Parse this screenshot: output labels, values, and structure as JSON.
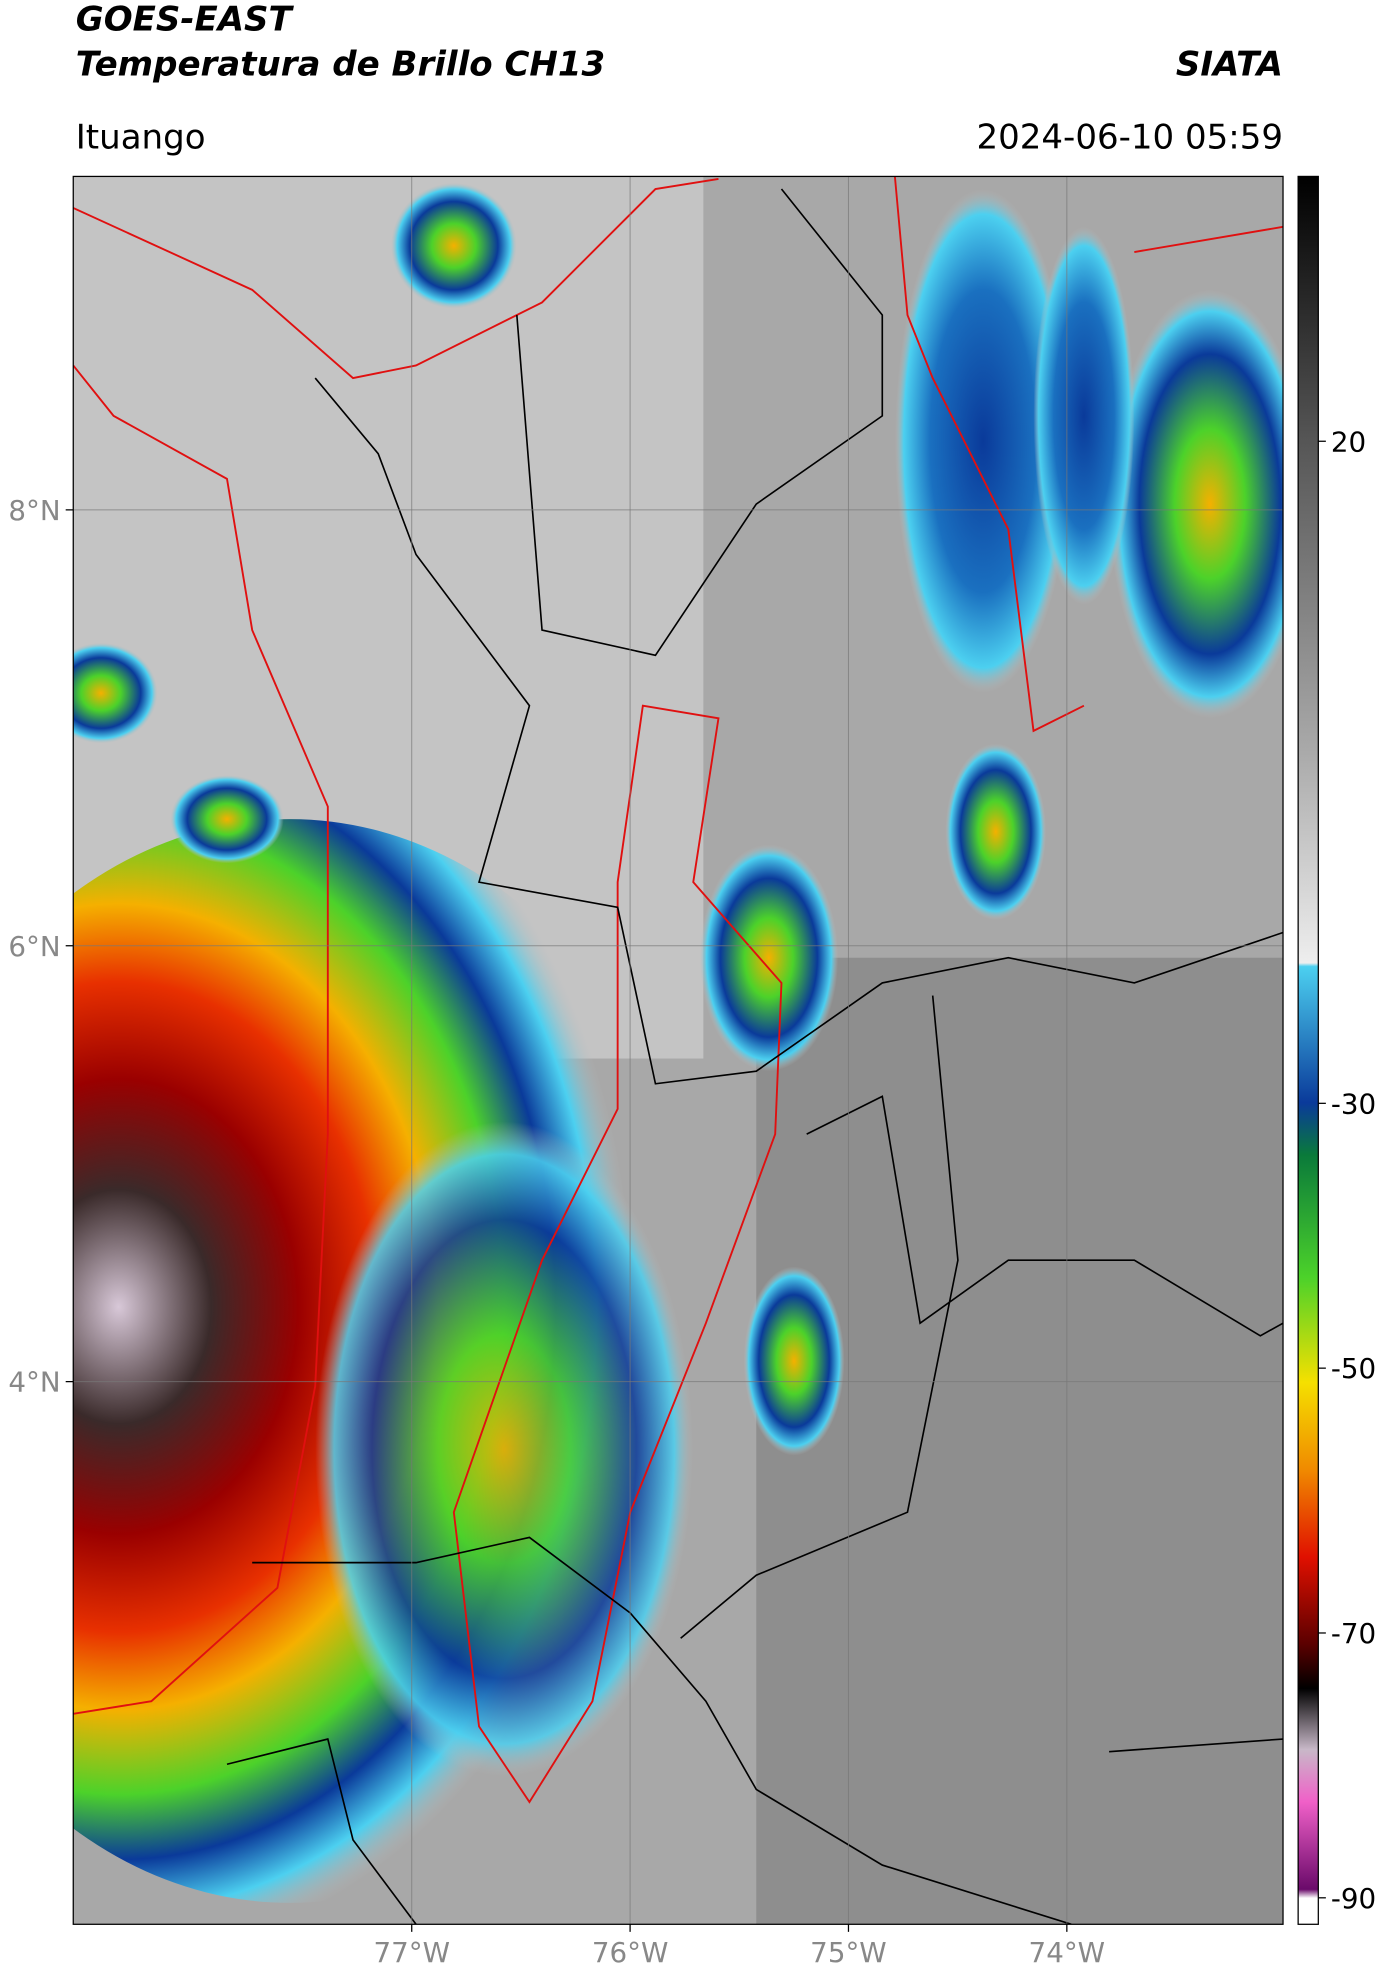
{
  "header": {
    "title_line1": "GOES-EAST",
    "title_line2": "Temperatura de Brillo CH13",
    "agency": "SIATA",
    "location": "Ituango",
    "timestamp": "2024-06-10 05:59"
  },
  "map": {
    "xlim": [
      -78.55,
      -73.01
    ],
    "ylim": [
      1.51,
      9.53
    ],
    "xticks": [
      {
        "value": -77,
        "label": "77°W"
      },
      {
        "value": -76,
        "label": "76°W"
      },
      {
        "value": -75,
        "label": "75°W"
      },
      {
        "value": -74,
        "label": "74°W"
      }
    ],
    "yticks": [
      {
        "value": 8,
        "label": "8°N"
      },
      {
        "value": 6,
        "label": "6°N"
      },
      {
        "value": 4,
        "label": "4°N"
      }
    ]
  },
  "colorbar": {
    "ylim": [
      -92,
      40
    ],
    "ticks": [
      20,
      -30,
      -50,
      -70,
      -90
    ]
  }
}
